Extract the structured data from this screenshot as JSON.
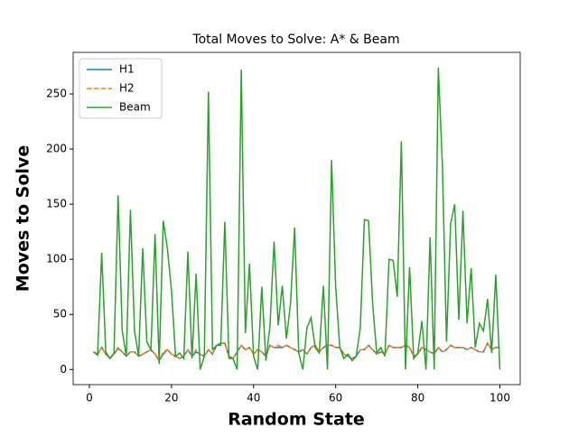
{
  "chart_data": {
    "type": "line",
    "title": "Total Moves to Solve: A* & Beam",
    "xlabel": "Random State",
    "ylabel": "Moves to Solve",
    "x": [
      1,
      2,
      3,
      4,
      5,
      6,
      7,
      8,
      9,
      10,
      11,
      12,
      13,
      14,
      15,
      16,
      17,
      18,
      19,
      20,
      21,
      22,
      23,
      24,
      25,
      26,
      27,
      28,
      29,
      30,
      31,
      32,
      33,
      34,
      35,
      36,
      37,
      38,
      39,
      40,
      41,
      42,
      43,
      44,
      45,
      46,
      47,
      48,
      49,
      50,
      51,
      52,
      53,
      54,
      55,
      56,
      57,
      58,
      59,
      60,
      61,
      62,
      63,
      64,
      65,
      66,
      67,
      68,
      69,
      70,
      71,
      72,
      73,
      74,
      75,
      76,
      77,
      78,
      79,
      80,
      81,
      82,
      83,
      84,
      85,
      86,
      87,
      88,
      89,
      90,
      91,
      92,
      93,
      94,
      95,
      96,
      97,
      98,
      99,
      100
    ],
    "series": [
      {
        "name": "H1",
        "color": "#1f77b4",
        "dash": false,
        "values": [
          16,
          14,
          20,
          14,
          10,
          14,
          19,
          16,
          12,
          16,
          16,
          12,
          14,
          16,
          18,
          14,
          8,
          14,
          18,
          14,
          12,
          10,
          12,
          18,
          12,
          16,
          14,
          12,
          18,
          14,
          22,
          24,
          24,
          12,
          10,
          16,
          22,
          18,
          20,
          14,
          18,
          16,
          12,
          22,
          20,
          20,
          20,
          22,
          20,
          18,
          16,
          18,
          14,
          20,
          22,
          16,
          20,
          22,
          22,
          20,
          20,
          14,
          12,
          10,
          12,
          18,
          18,
          22,
          18,
          14,
          16,
          14,
          22,
          20,
          20,
          20,
          22,
          20,
          12,
          14,
          20,
          18,
          16,
          14,
          20,
          16,
          18,
          22,
          20,
          20,
          20,
          18,
          20,
          18,
          16,
          16,
          24,
          18,
          20,
          20
        ]
      },
      {
        "name": "H2",
        "color": "#ff7f0e",
        "dash": true,
        "values": [
          16,
          14,
          20,
          14,
          10,
          14,
          20,
          16,
          12,
          16,
          16,
          12,
          14,
          16,
          18,
          14,
          8,
          16,
          18,
          14,
          12,
          10,
          12,
          18,
          12,
          18,
          14,
          12,
          18,
          14,
          22,
          24,
          24,
          12,
          10,
          16,
          22,
          18,
          20,
          14,
          18,
          16,
          12,
          22,
          20,
          22,
          20,
          22,
          20,
          18,
          16,
          18,
          14,
          20,
          22,
          16,
          20,
          22,
          22,
          20,
          20,
          14,
          12,
          10,
          12,
          18,
          18,
          22,
          18,
          14,
          16,
          14,
          22,
          20,
          20,
          20,
          22,
          20,
          12,
          14,
          20,
          18,
          16,
          14,
          20,
          16,
          18,
          22,
          20,
          20,
          20,
          18,
          20,
          18,
          16,
          16,
          24,
          18,
          20,
          20
        ]
      },
      {
        "name": "Beam",
        "color": "#2ca02c",
        "dash": false,
        "values": [
          16,
          13,
          106,
          16,
          10,
          15,
          158,
          35,
          12,
          145,
          35,
          12,
          110,
          25,
          18,
          123,
          5,
          135,
          110,
          72,
          12,
          15,
          10,
          107,
          10,
          87,
          0,
          12,
          252,
          18,
          22,
          22,
          134,
          10,
          10,
          0,
          272,
          33,
          96,
          12,
          0,
          75,
          8,
          40,
          116,
          40,
          76,
          28,
          60,
          129,
          15,
          0,
          38,
          47,
          20,
          15,
          76,
          0,
          190,
          75,
          20,
          10,
          14,
          8,
          12,
          38,
          136,
          135,
          60,
          15,
          20,
          12,
          100,
          99,
          66,
          207,
          0,
          93,
          10,
          15,
          44,
          0,
          120,
          0,
          274,
          185,
          25,
          132,
          150,
          45,
          144,
          42,
          92,
          20,
          42,
          35,
          64,
          15,
          86,
          0
        ]
      }
    ],
    "xlim": [
      -3.95,
      104.95
    ],
    "xticks": [
      0,
      20,
      40,
      60,
      80,
      100
    ],
    "ylim": [
      -13.7,
      287.7
    ],
    "yticks": [
      0,
      50,
      100,
      150,
      200,
      250
    ],
    "legend": "upper left"
  }
}
